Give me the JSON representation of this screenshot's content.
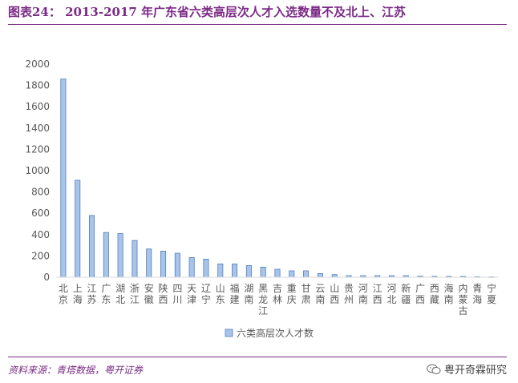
{
  "header": {
    "title": "图表24： 2013-2017 年广东省六类高层次人才入选数量不及北上、江苏"
  },
  "footer": {
    "source": "资料来源：青塔数据，粤开证券",
    "brand": "粤开奇霖研究"
  },
  "icons": {
    "brand": "wechat-icon"
  },
  "colors": {
    "bar_fill": "#a9c4e8",
    "bar_stroke": "#4f7fbf",
    "accent": "#7b2a86"
  },
  "chart_data": {
    "type": "bar",
    "title": "",
    "xlabel": "",
    "ylabel": "",
    "ylim": [
      0,
      2000
    ],
    "yticks": [
      0,
      200,
      400,
      600,
      800,
      1000,
      1200,
      1400,
      1600,
      1800,
      2000
    ],
    "grid": false,
    "legend_position": "bottom",
    "categories": [
      "北京",
      "上海",
      "江苏",
      "广东",
      "湖北",
      "浙江",
      "安徽",
      "陕西",
      "四川",
      "天津",
      "辽宁",
      "山东",
      "福建",
      "湖南",
      "黑龙江",
      "吉林",
      "重庆",
      "甘肃",
      "云南",
      "山西",
      "贵州",
      "河南",
      "江西",
      "河北",
      "新疆",
      "广西",
      "西藏",
      "海南",
      "内蒙古",
      "青海",
      "宁夏"
    ],
    "series": [
      {
        "name": "六类高层次人才数",
        "values": [
          1860,
          910,
          580,
          420,
          410,
          345,
          265,
          245,
          225,
          185,
          170,
          125,
          125,
          110,
          95,
          75,
          60,
          60,
          35,
          25,
          15,
          15,
          15,
          15,
          15,
          10,
          8,
          8,
          8,
          5,
          3
        ]
      }
    ]
  }
}
